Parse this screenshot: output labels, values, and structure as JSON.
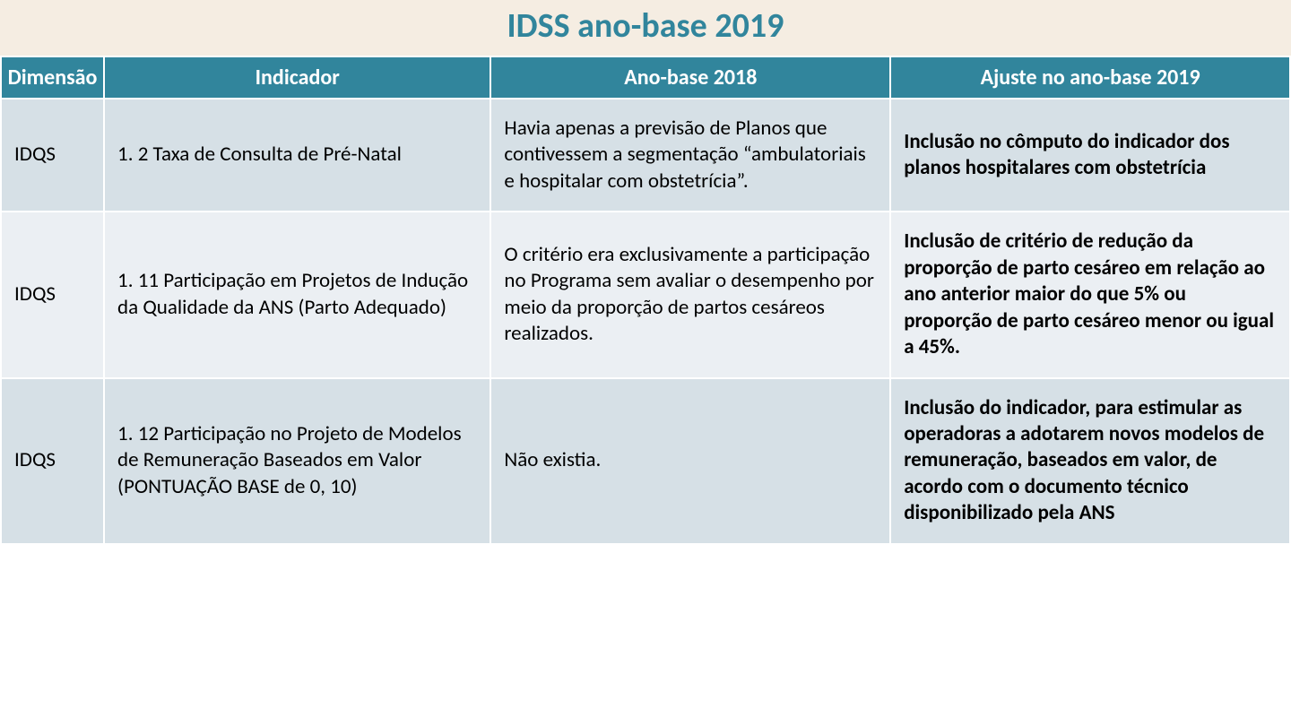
{
  "title": "IDSS ano-base 2019",
  "colors": {
    "title_text": "#31859c",
    "title_band_bg": "#f5ede2",
    "header_bg": "#31859c",
    "header_text": "#ffffff",
    "cell_border": "#ffffff",
    "row_tint_a": "#d6e0e6",
    "row_tint_b": "#ebeff3",
    "body_text": "#000000"
  },
  "typography": {
    "title_fontsize_pt": 28,
    "header_fontsize_pt": 18,
    "cell_fontsize_pt": 17,
    "font_family": "Calibri"
  },
  "table": {
    "column_widths_pct": [
      8,
      30,
      31,
      31
    ],
    "col_align": [
      "left",
      "left",
      "left",
      "left"
    ],
    "columns": [
      "Dimensão",
      "Indicador",
      "Ano-base 2018",
      "Ajuste no ano-base 2019"
    ],
    "rows": [
      {
        "tint": "a",
        "cells": [
          "IDQS",
          "1. 2 Taxa de Consulta de Pré-Natal",
          "Havia apenas a previsão de Planos que contivessem a segmentação “ambulatoriais e hospitalar com obstetrícia”.",
          "Inclusão no cômputo do indicador dos planos hospitalares com obstetrícia"
        ]
      },
      {
        "tint": "b",
        "cells": [
          "IDQS",
          "1. 11 Participação em Projetos de Indução da Qualidade da ANS (Parto Adequado)",
          "O critério era exclusivamente a participação no Programa sem avaliar o desempenho por meio da proporção de partos cesáreos realizados.",
          "Inclusão de critério de redução da proporção de parto cesáreo em relação ao ano anterior maior do que 5% ou proporção de parto cesáreo menor ou igual a 45%."
        ]
      },
      {
        "tint": "a",
        "cells": [
          "IDQS",
          "1. 12 Participação no Projeto de Modelos de Remuneração Baseados em Valor (PONTUAÇÃO BASE de 0, 10)",
          "Não existia.",
          "Inclusão do indicador, para estimular as operadoras a adotarem novos modelos de remuneração, baseados em valor, de acordo com o documento técnico disponibilizado pela ANS"
        ]
      }
    ]
  }
}
